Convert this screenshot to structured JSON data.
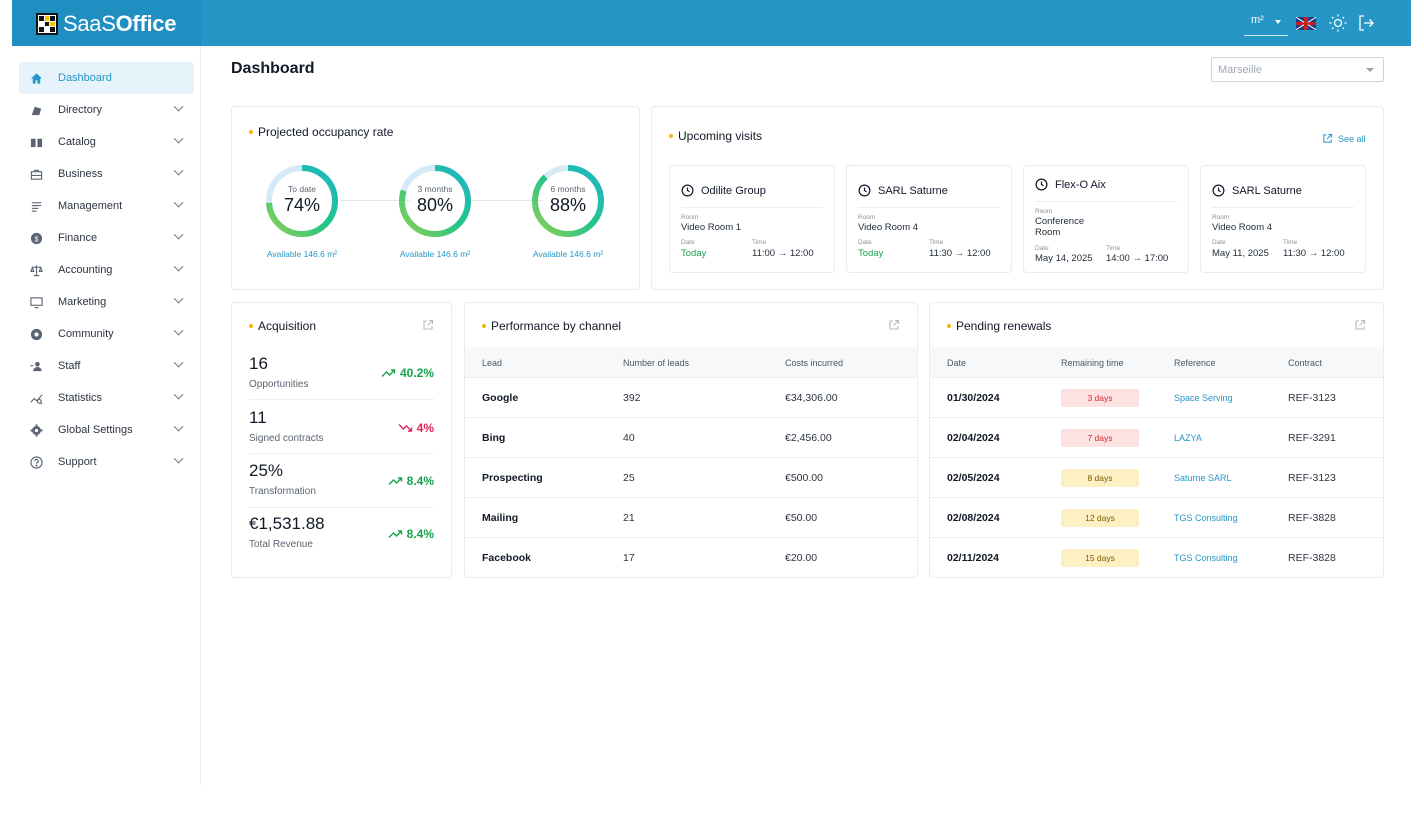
{
  "header": {
    "logo_prefix": "SaaS",
    "logo_suffix": "Office",
    "unit": "m²",
    "language": "EN"
  },
  "sidebar": {
    "items": [
      {
        "label": "Dashboard",
        "icon": "home-icon"
      },
      {
        "label": "Directory",
        "icon": "directory-icon"
      },
      {
        "label": "Catalog",
        "icon": "catalog-icon"
      },
      {
        "label": "Business",
        "icon": "briefcase-icon"
      },
      {
        "label": "Management",
        "icon": "management-icon"
      },
      {
        "label": "Finance",
        "icon": "dollar-icon"
      },
      {
        "label": "Accounting",
        "icon": "scale-icon"
      },
      {
        "label": "Marketing",
        "icon": "monitor-icon"
      },
      {
        "label": "Community",
        "icon": "community-icon"
      },
      {
        "label": "Staff",
        "icon": "staff-icon"
      },
      {
        "label": "Statistics",
        "icon": "statistics-icon"
      },
      {
        "label": "Global Settings",
        "icon": "gear-icon"
      },
      {
        "label": "Support",
        "icon": "help-icon"
      }
    ]
  },
  "main": {
    "title": "Dashboard",
    "city": "Marseille"
  },
  "occupancy": {
    "title": "Projected occupancy rate",
    "gauges": [
      {
        "label": "To date",
        "value": "74%",
        "fraction": 0.74,
        "available": "Available 146.6 m²"
      },
      {
        "label": "3 months",
        "value": "80%",
        "fraction": 0.8,
        "available": "Available 146.6 m²"
      },
      {
        "label": "6 months",
        "value": "88%",
        "fraction": 0.88,
        "available": "Available 146.6 m²"
      }
    ]
  },
  "visits": {
    "title": "Upcoming visits",
    "see_all": "See all",
    "room_label": "Room",
    "date_label": "Date",
    "time_label": "Time",
    "items": [
      {
        "company": "Odilite Group",
        "room": "Video Room 1",
        "date": "Today",
        "time": "11:00 → 12:00"
      },
      {
        "company": "SARL Saturne",
        "room": "Video Room 4",
        "date": "Today",
        "time": "11:30 → 12:00"
      },
      {
        "company": "Flex-O Aix",
        "room": "Conference Room",
        "date": "May 14, 2025",
        "time": "14:00 → 17:00"
      },
      {
        "company": "SARL Saturne",
        "room": "Video Room 4",
        "date": "May 11, 2025",
        "time": "11:30 → 12:00"
      }
    ]
  },
  "acquisition": {
    "title": "Acquisition",
    "kpis": [
      {
        "value": "16",
        "label": "Opportunities",
        "trend": "40.2%",
        "direction": "up"
      },
      {
        "value": "11",
        "label": "Signed contracts",
        "trend": "4%",
        "direction": "down"
      },
      {
        "value": "25%",
        "label": "Transformation",
        "trend": "8.4%",
        "direction": "up"
      },
      {
        "value": "€1,531.88",
        "label": "Total Revenue",
        "trend": "8.4%",
        "direction": "up"
      }
    ]
  },
  "channels": {
    "title": "Performance by channel",
    "columns": [
      "Lead",
      "Number of leads",
      "Costs incurred"
    ],
    "rows": [
      [
        "Google",
        "392",
        "€34,306.00"
      ],
      [
        "Bing",
        "40",
        "€2,456.00"
      ],
      [
        "Prospecting",
        "25",
        "€500.00"
      ],
      [
        "Mailing",
        "21",
        "€50.00"
      ],
      [
        "Facebook",
        "17",
        "€20.00"
      ]
    ]
  },
  "renewals": {
    "title": "Pending renewals",
    "columns": [
      "Date",
      "Remaining time",
      "Reference",
      "Contract"
    ],
    "rows": [
      {
        "date": "01/30/2024",
        "remaining": "3 days",
        "level": "red",
        "reference": "Space Serving",
        "contract": "REF-3123"
      },
      {
        "date": "02/04/2024",
        "remaining": "7 days",
        "level": "red",
        "reference": "LAZYA",
        "contract": "REF-3291"
      },
      {
        "date": "02/05/2024",
        "remaining": "8 days",
        "level": "yellow",
        "reference": "Saturne SARL",
        "contract": "REF-3123"
      },
      {
        "date": "02/08/2024",
        "remaining": "12 days",
        "level": "yellow",
        "reference": "TGS Consulting",
        "contract": "REF-3828"
      },
      {
        "date": "02/11/2024",
        "remaining": "15 days",
        "level": "yellow",
        "reference": "TGS Consulting",
        "contract": "REF-3828"
      }
    ]
  },
  "colors": {
    "primary": "#2596c6",
    "accent": "#f2b705",
    "success": "#16a34a",
    "danger": "#e0245e"
  }
}
